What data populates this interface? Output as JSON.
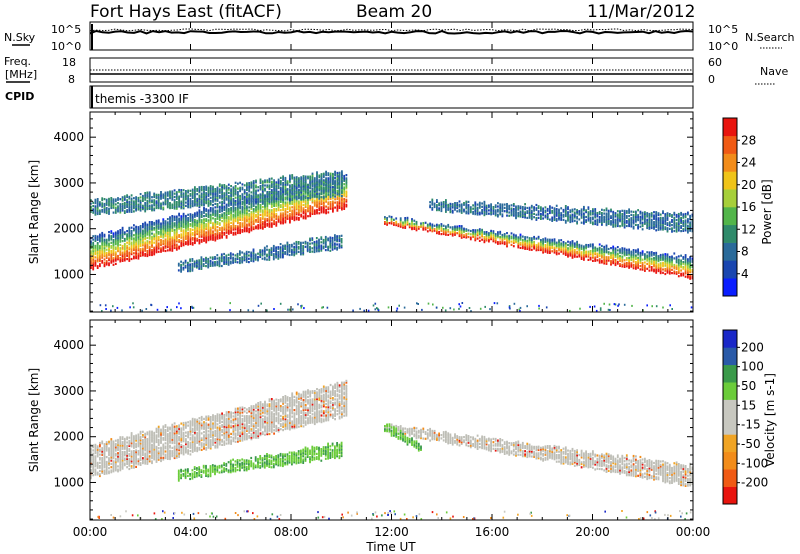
{
  "header": {
    "title": "Fort Hays East (fitACF)",
    "beam": "Beam 20",
    "date": "11/Mar/2012"
  },
  "params": {
    "nsky_label": "N.Sky",
    "nsky_hi": "10^5",
    "nsky_lo": "10^0",
    "nsearch_hi": "10^5",
    "nsearch_lo": "10^0",
    "nsearch_label": "N.Search",
    "freq_label": "Freq.",
    "freq_unit": "[MHz]",
    "freq_hi": "18",
    "freq_lo": "8",
    "nave_hi": "60",
    "nave_lo": "0",
    "nave_label": "Nave",
    "cpid_label": "CPID",
    "cpid_value": "themis -3300 IF"
  },
  "colors": {
    "power": [
      "#0a1eff",
      "#1a46b0",
      "#2a6a9a",
      "#2f8a6a",
      "#52b54a",
      "#a6cf3a",
      "#f0c419",
      "#f28c1a",
      "#f05a14",
      "#e8140e"
    ],
    "velocity": [
      "#e8140e",
      "#f05a14",
      "#f28c1a",
      "#f0a424",
      "#c8c8c0",
      "#c8c8c0",
      "#6bcc3a",
      "#3a9a4a",
      "#2a5aa8",
      "#1a28c8"
    ],
    "ground_scatter": "#bebeb6"
  },
  "chart_data": [
    {
      "type": "heatmap",
      "name": "power",
      "xlabel": "",
      "ylabel": "Slant Range [km]",
      "xlim": [
        "00:00",
        "24:00"
      ],
      "ylim": [
        180,
        4550
      ],
      "y_ticks": [
        1000,
        2000,
        3000,
        4000
      ],
      "colorbar": {
        "label": "Power [dB]",
        "range": [
          0,
          32
        ],
        "ticks": [
          4,
          8,
          12,
          16,
          20,
          24,
          28
        ]
      },
      "scatter_regions": [
        {
          "t_start": 0.0,
          "t_end": 10.2,
          "range_lo_start": 1100,
          "range_lo_end": 2450,
          "range_hi_start": 1800,
          "range_hi_end": 3200,
          "peak_db": 30,
          "region": "main band"
        },
        {
          "t_start": 0.0,
          "t_end": 10.0,
          "range_lo_start": 2300,
          "range_lo_end": 2700,
          "range_hi_start": 2600,
          "range_hi_end": 3250,
          "peak_db": 12,
          "region": "upper band"
        },
        {
          "t_start": 3.5,
          "t_end": 10.0,
          "range_lo_start": 1050,
          "range_lo_end": 1550,
          "range_hi_start": 1250,
          "range_hi_end": 1850,
          "peak_db": 10,
          "region": "lower band"
        },
        {
          "t_start": 11.7,
          "t_end": 24.0,
          "range_lo_start": 2100,
          "range_lo_end": 900,
          "range_hi_start": 2250,
          "range_hi_end": 1350,
          "peak_db": 30,
          "region": "evening band"
        },
        {
          "t_start": 13.5,
          "t_end": 24.0,
          "range_lo_start": 2400,
          "range_lo_end": 1900,
          "range_hi_start": 2600,
          "range_hi_end": 2300,
          "peak_db": 10,
          "region": "evening upper band"
        }
      ]
    },
    {
      "type": "heatmap",
      "name": "velocity",
      "xlabel": "Time UT",
      "ylabel": "Slant Range [km]",
      "xlim": [
        "00:00",
        "24:00"
      ],
      "ylim": [
        180,
        4550
      ],
      "y_ticks": [
        1000,
        2000,
        3000,
        4000
      ],
      "x_ticks": [
        "00:00",
        "04:00",
        "08:00",
        "12:00",
        "16:00",
        "20:00",
        "00:00"
      ],
      "colorbar": {
        "label": "Velocity [m s-1]",
        "ticks": [
          "200",
          "100",
          "50",
          "15",
          "-15",
          "-50",
          "-100",
          "-200"
        ]
      },
      "scatter_regions": [
        {
          "t_start": 0.0,
          "t_end": 10.2,
          "range_lo_start": 1100,
          "range_lo_end": 2450,
          "range_hi_start": 1800,
          "range_hi_end": 3200,
          "velocity": "ground scatter"
        },
        {
          "t_start": 3.5,
          "t_end": 10.0,
          "range_lo_start": 1050,
          "range_lo_end": 1550,
          "range_hi_start": 1250,
          "range_hi_end": 1850,
          "velocity": "15 to 50"
        },
        {
          "t_start": 11.7,
          "t_end": 24.0,
          "range_lo_start": 2100,
          "range_lo_end": 900,
          "range_hi_start": 2250,
          "range_hi_end": 1350,
          "velocity": "ground scatter"
        },
        {
          "t_start": 11.7,
          "t_end": 13.2,
          "range_lo_start": 2100,
          "range_lo_end": 1650,
          "range_hi_start": 2300,
          "range_hi_end": 1800,
          "velocity": "15 to 50"
        }
      ]
    }
  ]
}
